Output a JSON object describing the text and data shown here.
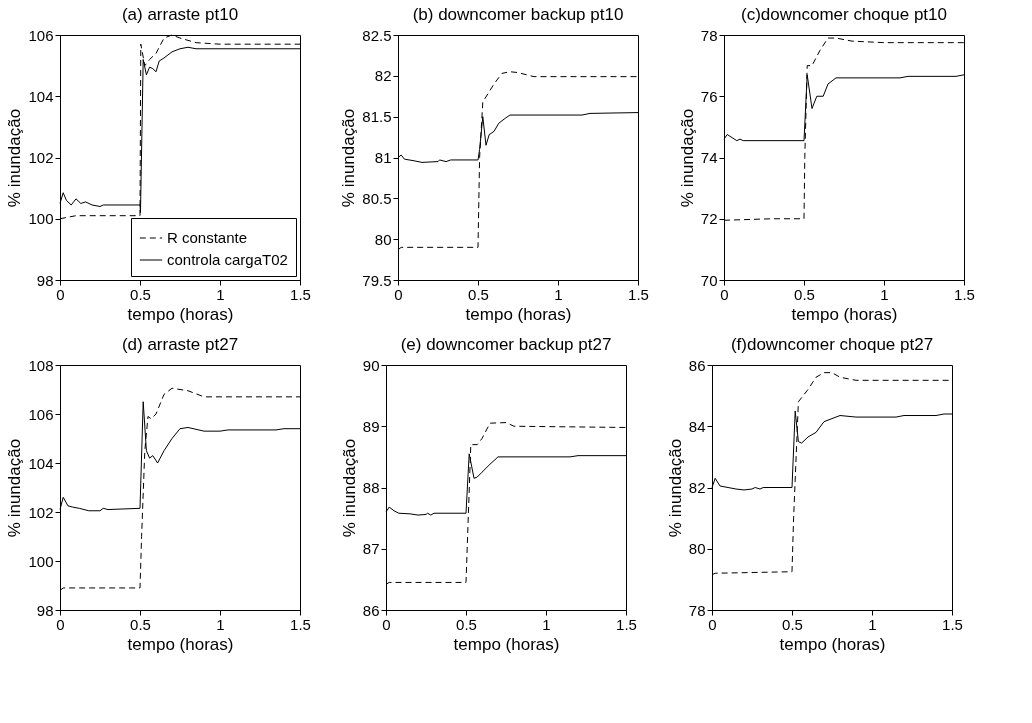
{
  "chart_data": [
    {
      "type": "line",
      "title": "(a) arraste pt10",
      "xlabel": "tempo (horas)",
      "ylabel": "% inundação",
      "xlim": [
        0,
        1.5
      ],
      "xticks": [
        0,
        0.5,
        1,
        1.5
      ],
      "ylim": [
        98,
        106
      ],
      "yticks": [
        98,
        100,
        102,
        104,
        106
      ],
      "grid": false,
      "legend": "bottom right",
      "series": [
        {
          "name": "R constante",
          "color": "#000000",
          "line_style": "dashed",
          "x": [
            0,
            0.05,
            0.1,
            0.5,
            0.505,
            0.53,
            0.56,
            0.6,
            0.65,
            0.7,
            0.75,
            0.85,
            1.0,
            1.5
          ],
          "values": [
            100.0,
            100.05,
            100.1,
            100.1,
            105.7,
            105.0,
            105.2,
            105.4,
            105.9,
            106.0,
            105.9,
            105.75,
            105.7,
            105.7
          ]
        },
        {
          "name": "controla cargaT02",
          "color": "#000000",
          "line_style": "solid",
          "x": [
            0,
            0.02,
            0.04,
            0.07,
            0.1,
            0.13,
            0.16,
            0.2,
            0.25,
            0.27,
            0.5,
            0.503,
            0.52,
            0.54,
            0.56,
            0.58,
            0.6,
            0.62,
            0.65,
            0.7,
            0.75,
            0.8,
            0.85,
            1.0,
            1.5
          ],
          "values": [
            100.5,
            100.85,
            100.6,
            100.45,
            100.65,
            100.5,
            100.55,
            100.45,
            100.4,
            100.45,
            100.45,
            100.2,
            105.2,
            104.7,
            104.95,
            104.9,
            104.8,
            105.15,
            105.25,
            105.45,
            105.55,
            105.6,
            105.55,
            105.55,
            105.55
          ]
        }
      ]
    },
    {
      "type": "line",
      "title": "(b) downcomer backup pt10",
      "xlabel": "tempo (horas)",
      "ylabel": "% inundação",
      "xlim": [
        0,
        1.5
      ],
      "xticks": [
        0,
        0.5,
        1,
        1.5
      ],
      "ylim": [
        79.5,
        82.5
      ],
      "yticks": [
        79.5,
        80,
        80.5,
        81,
        81.5,
        82,
        82.5
      ],
      "grid": false,
      "series": [
        {
          "color": "#000000",
          "line_style": "dashed",
          "x": [
            0,
            0.02,
            0.5,
            0.51,
            0.53,
            0.6,
            0.65,
            0.7,
            0.75,
            0.85,
            1.0,
            1.5
          ],
          "values": [
            79.87,
            79.9,
            79.9,
            81.0,
            81.68,
            81.9,
            82.03,
            82.05,
            82.04,
            81.99,
            81.99,
            81.99
          ]
        },
        {
          "color": "#000000",
          "line_style": "solid",
          "x": [
            0,
            0.02,
            0.04,
            0.1,
            0.15,
            0.25,
            0.26,
            0.3,
            0.33,
            0.5,
            0.51,
            0.53,
            0.55,
            0.57,
            0.6,
            0.63,
            0.67,
            0.7,
            1.15,
            1.2,
            1.5
          ],
          "values": [
            81.0,
            81.03,
            80.98,
            80.96,
            80.94,
            80.95,
            80.97,
            80.95,
            80.97,
            80.97,
            81.1,
            81.5,
            81.15,
            81.28,
            81.32,
            81.42,
            81.48,
            81.52,
            81.52,
            81.54,
            81.55
          ]
        }
      ]
    },
    {
      "type": "line",
      "title": "(c)downcomer choque pt10",
      "xlabel": "tempo (horas)",
      "ylabel": "% inundação",
      "xlim": [
        0,
        1.5
      ],
      "xticks": [
        0,
        0.5,
        1,
        1.5
      ],
      "ylim": [
        70,
        78
      ],
      "yticks": [
        70,
        72,
        74,
        76,
        78
      ],
      "grid": false,
      "series": [
        {
          "color": "#000000",
          "line_style": "dashed",
          "x": [
            0,
            0.3,
            0.5,
            0.505,
            0.52,
            0.55,
            0.6,
            0.65,
            0.7,
            0.8,
            1.0,
            1.5
          ],
          "values": [
            71.95,
            72.0,
            72.0,
            74.0,
            77.0,
            77.0,
            77.5,
            77.9,
            77.9,
            77.8,
            77.75,
            77.75
          ]
        },
        {
          "color": "#000000",
          "line_style": "solid",
          "x": [
            0,
            0.02,
            0.05,
            0.08,
            0.1,
            0.12,
            0.5,
            0.52,
            0.55,
            0.58,
            0.62,
            0.65,
            0.7,
            1.1,
            1.15,
            1.45,
            1.5
          ],
          "values": [
            74.6,
            74.75,
            74.65,
            74.55,
            74.6,
            74.55,
            74.55,
            76.7,
            75.6,
            76.0,
            76.0,
            76.4,
            76.6,
            76.6,
            76.65,
            76.65,
            76.7
          ]
        }
      ]
    },
    {
      "type": "line",
      "title": "(d) arraste pt27",
      "xlabel": "tempo (horas)",
      "ylabel": "% inundação",
      "xlim": [
        0,
        1.5
      ],
      "xticks": [
        0,
        0.5,
        1,
        1.5
      ],
      "ylim": [
        98,
        108
      ],
      "yticks": [
        98,
        100,
        102,
        104,
        106,
        108
      ],
      "grid": false,
      "series": [
        {
          "color": "#000000",
          "line_style": "dashed",
          "x": [
            0,
            0.02,
            0.5,
            0.51,
            0.53,
            0.55,
            0.57,
            0.6,
            0.65,
            0.7,
            0.8,
            0.9,
            1.5
          ],
          "values": [
            98.8,
            98.9,
            98.9,
            101.0,
            104.5,
            105.9,
            105.8,
            106.0,
            106.8,
            107.05,
            106.95,
            106.7,
            106.7
          ]
        },
        {
          "color": "#000000",
          "line_style": "solid",
          "x": [
            0,
            0.02,
            0.05,
            0.08,
            0.12,
            0.18,
            0.25,
            0.27,
            0.3,
            0.5,
            0.52,
            0.54,
            0.56,
            0.58,
            0.61,
            0.65,
            0.7,
            0.75,
            0.8,
            0.9,
            1.0,
            1.05,
            1.35,
            1.4,
            1.5
          ],
          "values": [
            102.1,
            102.6,
            102.25,
            102.2,
            102.15,
            102.05,
            102.05,
            102.15,
            102.1,
            102.15,
            106.5,
            104.5,
            104.2,
            104.3,
            104.0,
            104.5,
            105.0,
            105.4,
            105.45,
            105.3,
            105.3,
            105.35,
            105.35,
            105.4,
            105.4
          ]
        }
      ]
    },
    {
      "type": "line",
      "title": "(e) downcomer backup pt27",
      "xlabel": "tempo (horas)",
      "ylabel": "% inundação",
      "xlim": [
        0,
        1.5
      ],
      "xticks": [
        0,
        0.5,
        1,
        1.5
      ],
      "ylim": [
        86,
        90
      ],
      "yticks": [
        86,
        87,
        88,
        89,
        90
      ],
      "grid": false,
      "series": [
        {
          "color": "#000000",
          "line_style": "dashed",
          "x": [
            0,
            0.02,
            0.5,
            0.51,
            0.53,
            0.57,
            0.6,
            0.65,
            0.75,
            0.8,
            1.5
          ],
          "values": [
            86.42,
            86.45,
            86.45,
            87.2,
            88.7,
            88.7,
            88.8,
            89.05,
            89.06,
            89.0,
            88.98
          ]
        },
        {
          "color": "#000000",
          "line_style": "solid",
          "x": [
            0,
            0.02,
            0.05,
            0.08,
            0.15,
            0.2,
            0.25,
            0.26,
            0.28,
            0.3,
            0.5,
            0.52,
            0.55,
            0.57,
            0.6,
            0.65,
            0.7,
            1.15,
            1.2,
            1.5
          ],
          "values": [
            87.6,
            87.68,
            87.62,
            87.58,
            87.57,
            87.55,
            87.56,
            87.58,
            87.55,
            87.58,
            87.58,
            88.55,
            88.15,
            88.17,
            88.25,
            88.38,
            88.5,
            88.5,
            88.52,
            88.52
          ]
        }
      ]
    },
    {
      "type": "line",
      "title": "(f)downcomer choque pt27",
      "xlabel": "tempo (horas)",
      "ylabel": "% inundação",
      "xlim": [
        0,
        1.5
      ],
      "xticks": [
        0,
        0.5,
        1,
        1.5
      ],
      "ylim": [
        78,
        86
      ],
      "yticks": [
        78,
        80,
        82,
        84,
        86
      ],
      "grid": false,
      "series": [
        {
          "color": "#000000",
          "line_style": "dashed",
          "x": [
            0,
            0.02,
            0.5,
            0.51,
            0.54,
            0.6,
            0.65,
            0.7,
            0.75,
            0.8,
            0.9,
            1.5
          ],
          "values": [
            79.15,
            79.2,
            79.25,
            81.0,
            84.8,
            85.2,
            85.6,
            85.75,
            85.75,
            85.6,
            85.5,
            85.5
          ]
        },
        {
          "color": "#000000",
          "line_style": "solid",
          "x": [
            0,
            0.02,
            0.05,
            0.1,
            0.15,
            0.2,
            0.25,
            0.27,
            0.3,
            0.32,
            0.5,
            0.52,
            0.54,
            0.56,
            0.6,
            0.65,
            0.7,
            0.8,
            0.9,
            1.15,
            1.2,
            1.4,
            1.45,
            1.5
          ],
          "values": [
            82.0,
            82.3,
            82.05,
            82.0,
            81.95,
            81.92,
            81.95,
            82.0,
            81.95,
            82.0,
            82.0,
            84.5,
            83.5,
            83.45,
            83.65,
            83.8,
            84.15,
            84.35,
            84.3,
            84.3,
            84.35,
            84.35,
            84.4,
            84.4
          ]
        }
      ]
    }
  ]
}
